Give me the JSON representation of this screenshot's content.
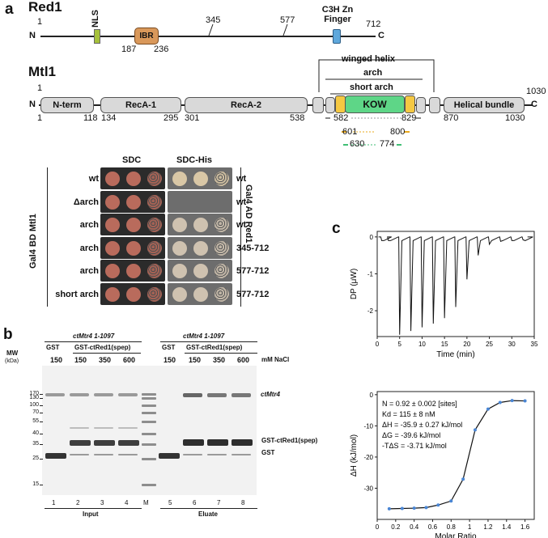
{
  "panels": {
    "a": "a",
    "b": "b",
    "c": "c"
  },
  "red1": {
    "title": "Red1",
    "n_label": "N",
    "c_label": "C",
    "start": "1",
    "nls": "NLS",
    "ibr": "IBR",
    "ibr_start": "187",
    "ibr_end": "236",
    "pos345": "345",
    "pos577": "577",
    "znf": "C3H Zn Finger",
    "end": "712",
    "colors": {
      "nls": "#a6c13a",
      "ibr": "#d9985a",
      "znf": "#5fa8dc"
    }
  },
  "mtl1": {
    "title": "Mtl1",
    "n_label": "N",
    "c_label": "C",
    "start_top": "1",
    "end_top": "1030",
    "domains": [
      "N-term",
      "RecA-1",
      "RecA-2",
      "KOW",
      "Helical bundle"
    ],
    "positions": [
      "1",
      "118",
      "134",
      "295",
      "301",
      "538",
      "582",
      "829",
      "870",
      "1030"
    ],
    "winged_helix": "winged helix",
    "arch": "arch",
    "short_arch": "short arch",
    "construct1": [
      "601",
      "800"
    ],
    "construct2": [
      "630",
      "774"
    ],
    "colors": {
      "kow": "#5ed687",
      "yellow": "#f5c842",
      "domain": "#d9d9d9"
    }
  },
  "y2h": {
    "col_sdc": "SDC",
    "col_sdchis": "SDC-His",
    "left_axis": "Gal4 BD Mtl1",
    "right_axis": "Gal4 AD Red1",
    "rows": [
      {
        "bd": "wt",
        "ad": "wt",
        "growth": [
          3,
          3,
          3
        ],
        "his": [
          3,
          3,
          3
        ]
      },
      {
        "bd": "Δarch",
        "ad": "wt",
        "growth": [
          3,
          3,
          3
        ],
        "his": [
          0,
          0,
          0
        ]
      },
      {
        "bd": "arch",
        "ad": "wt",
        "growth": [
          3,
          3,
          3
        ],
        "his": [
          3,
          3,
          3
        ]
      },
      {
        "bd": "arch",
        "ad": "345-712",
        "growth": [
          3,
          3,
          3
        ],
        "his": [
          3,
          3,
          3
        ]
      },
      {
        "bd": "arch",
        "ad": "577-712",
        "growth": [
          3,
          3,
          3
        ],
        "his": [
          3,
          3,
          3
        ]
      },
      {
        "bd": "short arch",
        "ad": "577-712",
        "growth": [
          3,
          3,
          3
        ],
        "his": [
          3,
          3,
          3
        ]
      }
    ]
  },
  "gel": {
    "mw_label": "MW",
    "kda_label": "(kDa)",
    "group_left": "ctMtr4 1-1097",
    "group_right": "ctMtr4 1-1097",
    "gst": "GST",
    "gst_red": "GST-ctRed1(spep)",
    "salt": [
      "150",
      "150",
      "350",
      "600"
    ],
    "salt_unit": "mM NaCl",
    "marker_lane": "M",
    "markers": [
      "170",
      "130",
      "100",
      "70",
      "55",
      "40",
      "35",
      "25",
      "15"
    ],
    "lanes_left": [
      "1",
      "2",
      "3",
      "4"
    ],
    "lanes_right": [
      "5",
      "6",
      "7",
      "8"
    ],
    "input": "Input",
    "eluate": "Eluate",
    "band_labels": [
      "ctMtr4",
      "GST-ctRed1(spep)",
      "GST"
    ]
  },
  "itc": {
    "dp_ylabel": "DP (μW)",
    "dp_xlabel": "Time (min)",
    "dp_xticks": [
      "0",
      "5",
      "10",
      "15",
      "20",
      "25",
      "30",
      "35"
    ],
    "dp_yticks": [
      "0",
      "-1",
      "-2"
    ],
    "dh_ylabel": "ΔH (kJ/mol)",
    "dh_xlabel": "Molar Ratio",
    "dh_xticks": [
      "0",
      "0.2",
      "0.4",
      "0.6",
      "0.8",
      "1",
      "1.2",
      "1.4",
      "1.6"
    ],
    "dh_yticks": [
      "0",
      "-10",
      "-20",
      "-30"
    ],
    "params": [
      "N = 0.92 ± 0.002 [sites]",
      "Kd = 115 ± 8 nM",
      "ΔH = -35.9 ± 0.27 kJ/mol",
      "ΔG = -39.6 kJ/mol",
      "-TΔS = -3.71 kJ/mol"
    ]
  },
  "chart_data": [
    {
      "type": "line",
      "title": "",
      "xlabel": "Time (min)",
      "ylabel": "DP (μW)",
      "xlim": [
        0,
        35
      ],
      "ylim": [
        -2.7,
        0.15
      ],
      "series": [
        {
          "values_peak_time": [
            1.0,
            2.5,
            5.0,
            7.5,
            10.0,
            12.5,
            15.0,
            17.5,
            20.0,
            22.5,
            25.0,
            27.5,
            30.0,
            32.5
          ],
          "values_peak_dp": [
            -0.1,
            -0.1,
            -2.65,
            -2.55,
            -2.45,
            -2.35,
            -2.2,
            -1.9,
            -1.15,
            -0.5,
            -0.2,
            -0.12,
            -0.1,
            -0.08
          ]
        }
      ]
    },
    {
      "type": "scatter",
      "title": "",
      "xlabel": "Molar Ratio",
      "ylabel": "ΔH (kJ/mol)",
      "xlim": [
        0,
        1.7
      ],
      "ylim": [
        -40,
        1
      ],
      "x": [
        0.13,
        0.27,
        0.4,
        0.53,
        0.66,
        0.8,
        0.93,
        1.06,
        1.2,
        1.33,
        1.46,
        1.6
      ],
      "y": [
        -36.6,
        -36.5,
        -36.4,
        -36.2,
        -35.4,
        -34.1,
        -27.1,
        -11.3,
        -4.6,
        -2.5,
        -1.9,
        -2.0
      ]
    }
  ]
}
